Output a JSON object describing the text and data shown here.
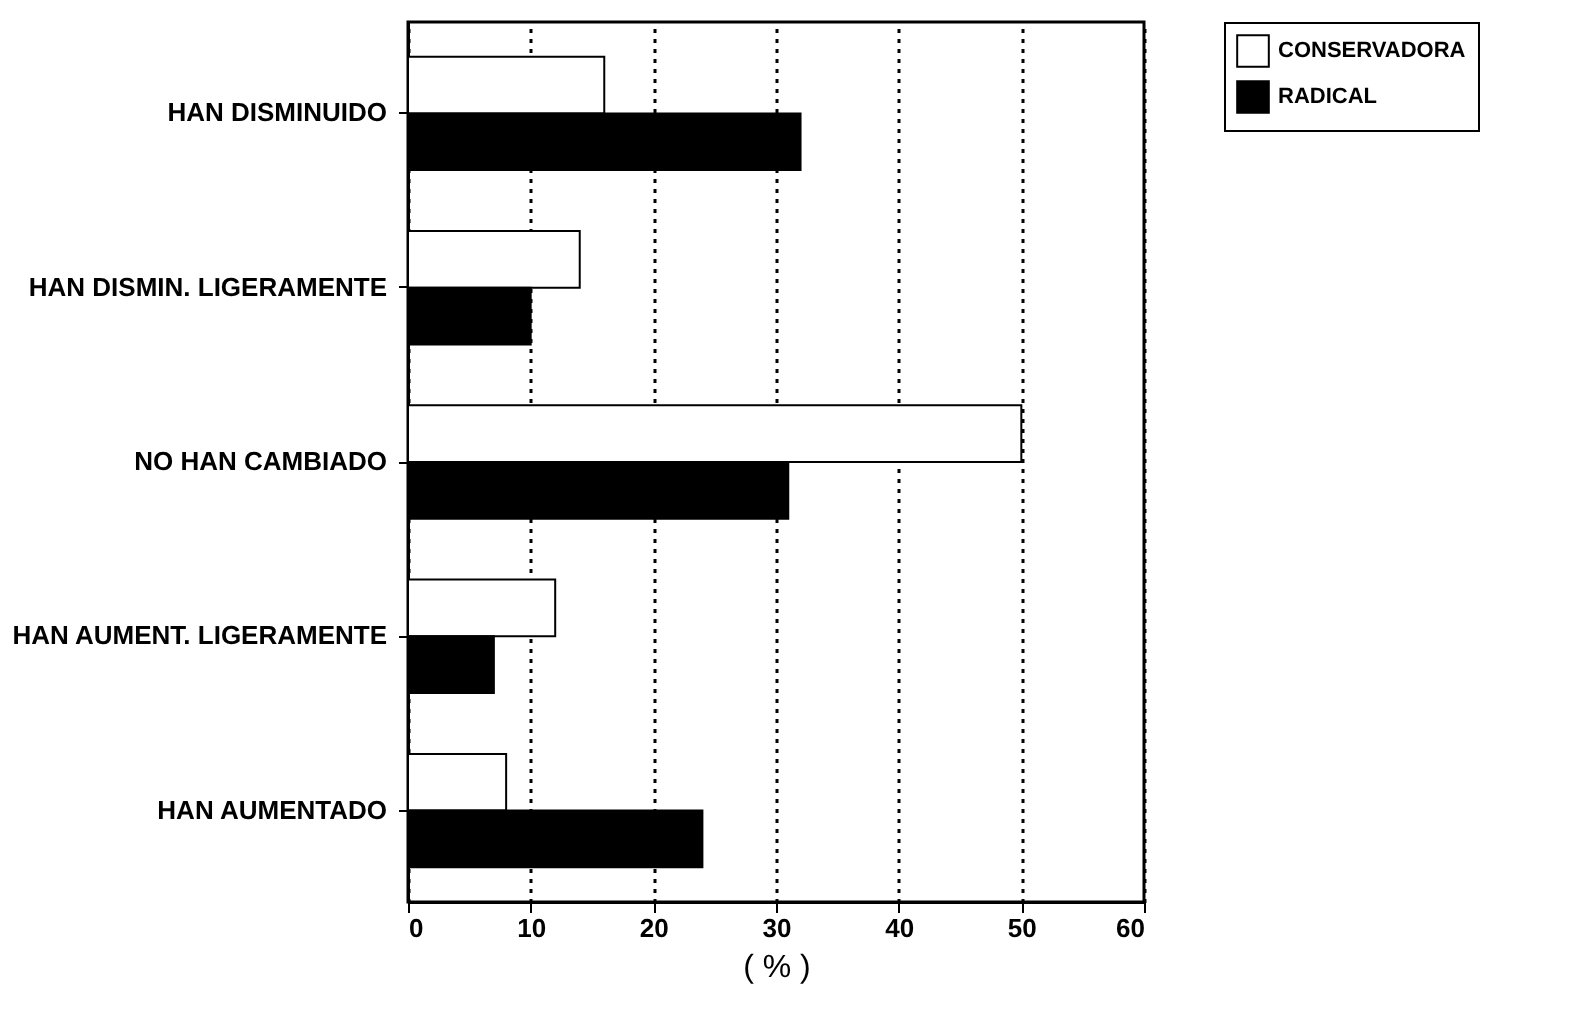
{
  "chart_data": {
    "type": "bar",
    "orientation": "horizontal",
    "xlabel": "( % )",
    "categories": [
      "HAN DISMINUIDO",
      "HAN DISMIN. LIGERAMENTE",
      "NO HAN CAMBIADO",
      "HAN AUMENT. LIGERAMENTE",
      "HAN AUMENTADO"
    ],
    "series": [
      {
        "name": "CONSERVADORA",
        "color": "#ffffff",
        "values": [
          16,
          14,
          50,
          12,
          8
        ]
      },
      {
        "name": "RADICAL",
        "color": "#000000",
        "values": [
          32,
          10,
          31,
          7,
          24
        ]
      }
    ],
    "xlim": [
      0,
      60
    ],
    "xticks": [
      0,
      10,
      20,
      30,
      40,
      50,
      60
    ],
    "grid": "x",
    "legend": "top right"
  }
}
